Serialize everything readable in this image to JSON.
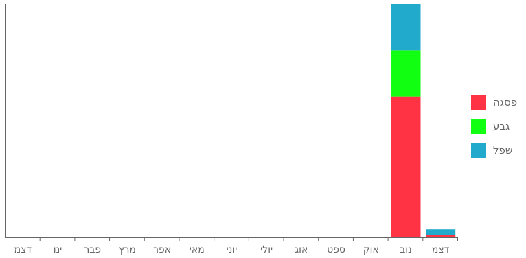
{
  "chart_data": {
    "type": "bar",
    "stacked": true,
    "categories": [
      "דצמ",
      "ינו",
      "פבר",
      "מרץ",
      "אפר",
      "מאי",
      "יוני",
      "יולי",
      "אוג",
      "ספט",
      "אוק",
      "נוב",
      "דצמ"
    ],
    "series": [
      {
        "name": "פסגה",
        "color": "#ff3344",
        "values": [
          0,
          0,
          0,
          0,
          0,
          0,
          0,
          0,
          0,
          0,
          0,
          61,
          1
        ]
      },
      {
        "name": "גבע",
        "color": "#11ff11",
        "values": [
          0,
          0,
          0,
          0,
          0,
          0,
          0,
          0,
          0,
          0,
          0,
          20,
          0
        ]
      },
      {
        "name": "שפל",
        "color": "#22aacc",
        "values": [
          0,
          0,
          0,
          0,
          0,
          0,
          0,
          0,
          0,
          0,
          0,
          20,
          2.5
        ]
      }
    ],
    "ylim": [
      0,
      101
    ],
    "legend_position": "right",
    "grid": false
  }
}
